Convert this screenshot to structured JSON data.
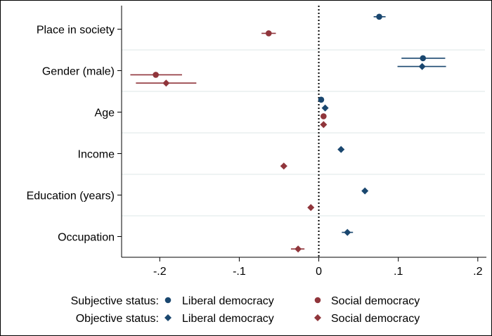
{
  "chart_data": {
    "type": "scatter",
    "subtype": "coefficient-plot-with-confidence-intervals",
    "orientation": "horizontal",
    "categories": [
      "Place in society",
      "Gender (male)",
      "Age",
      "Income",
      "Education (years)",
      "Occupation"
    ],
    "xlim": [
      -0.248,
      0.209
    ],
    "xticks": [
      -0.2,
      -0.1,
      0,
      0.1,
      0.2
    ],
    "xtick_labels": [
      "-.2",
      "-.1",
      "0",
      ".1",
      ".2"
    ],
    "reference_line": {
      "x": 0,
      "style": "dotted"
    },
    "grid": "horizontal separators between categories",
    "legend_position": "bottom",
    "legend": {
      "rows": [
        {
          "label": "Subjective status:",
          "entries": [
            "Liberal democracy",
            "Social democracy"
          ]
        },
        {
          "label": "Objective status:",
          "entries": [
            "Liberal democracy",
            "Social democracy"
          ]
        }
      ]
    },
    "series": [
      {
        "name": "Liberal democracy",
        "group": "Subjective status",
        "marker": "circle",
        "color": "#1a476f",
        "points": [
          {
            "category": "Place in society",
            "value": 0.076,
            "ci": [
              0.069,
              0.084
            ]
          },
          {
            "category": "Gender (male)",
            "value": 0.131,
            "ci": [
              0.104,
              0.159
            ]
          },
          {
            "category": "Age",
            "value": 0.003,
            "ci": [
              0.002,
              0.004
            ]
          }
        ]
      },
      {
        "name": "Liberal democracy",
        "group": "Objective status",
        "marker": "diamond",
        "color": "#1a476f",
        "points": [
          {
            "category": "Gender (male)",
            "value": 0.13,
            "ci": [
              0.099,
              0.16
            ]
          },
          {
            "category": "Age",
            "value": 0.008,
            "ci": [
              0.007,
              0.009
            ]
          },
          {
            "category": "Income",
            "value": 0.028,
            "ci": [
              0.024,
              0.032
            ]
          },
          {
            "category": "Education (years)",
            "value": 0.058,
            "ci": [
              0.055,
              0.061
            ]
          },
          {
            "category": "Occupation",
            "value": 0.036,
            "ci": [
              0.029,
              0.043
            ]
          }
        ]
      },
      {
        "name": "Social democracy",
        "group": "Subjective status",
        "marker": "circle",
        "color": "#90353b",
        "points": [
          {
            "category": "Place in society",
            "value": -0.063,
            "ci": [
              -0.072,
              -0.054
            ]
          },
          {
            "category": "Gender (male)",
            "value": -0.205,
            "ci": [
              -0.237,
              -0.172
            ]
          },
          {
            "category": "Age",
            "value": 0.006,
            "ci": [
              0.005,
              0.007
            ]
          }
        ]
      },
      {
        "name": "Social democracy",
        "group": "Objective status",
        "marker": "diamond",
        "color": "#90353b",
        "points": [
          {
            "category": "Gender (male)",
            "value": -0.192,
            "ci": [
              -0.23,
              -0.154
            ]
          },
          {
            "category": "Age",
            "value": 0.006,
            "ci": [
              0.005,
              0.007
            ]
          },
          {
            "category": "Income",
            "value": -0.044,
            "ci": [
              -0.048,
              -0.04
            ]
          },
          {
            "category": "Education (years)",
            "value": -0.01,
            "ci": [
              -0.013,
              -0.007
            ]
          },
          {
            "category": "Occupation",
            "value": -0.026,
            "ci": [
              -0.035,
              -0.018
            ]
          }
        ]
      }
    ]
  }
}
